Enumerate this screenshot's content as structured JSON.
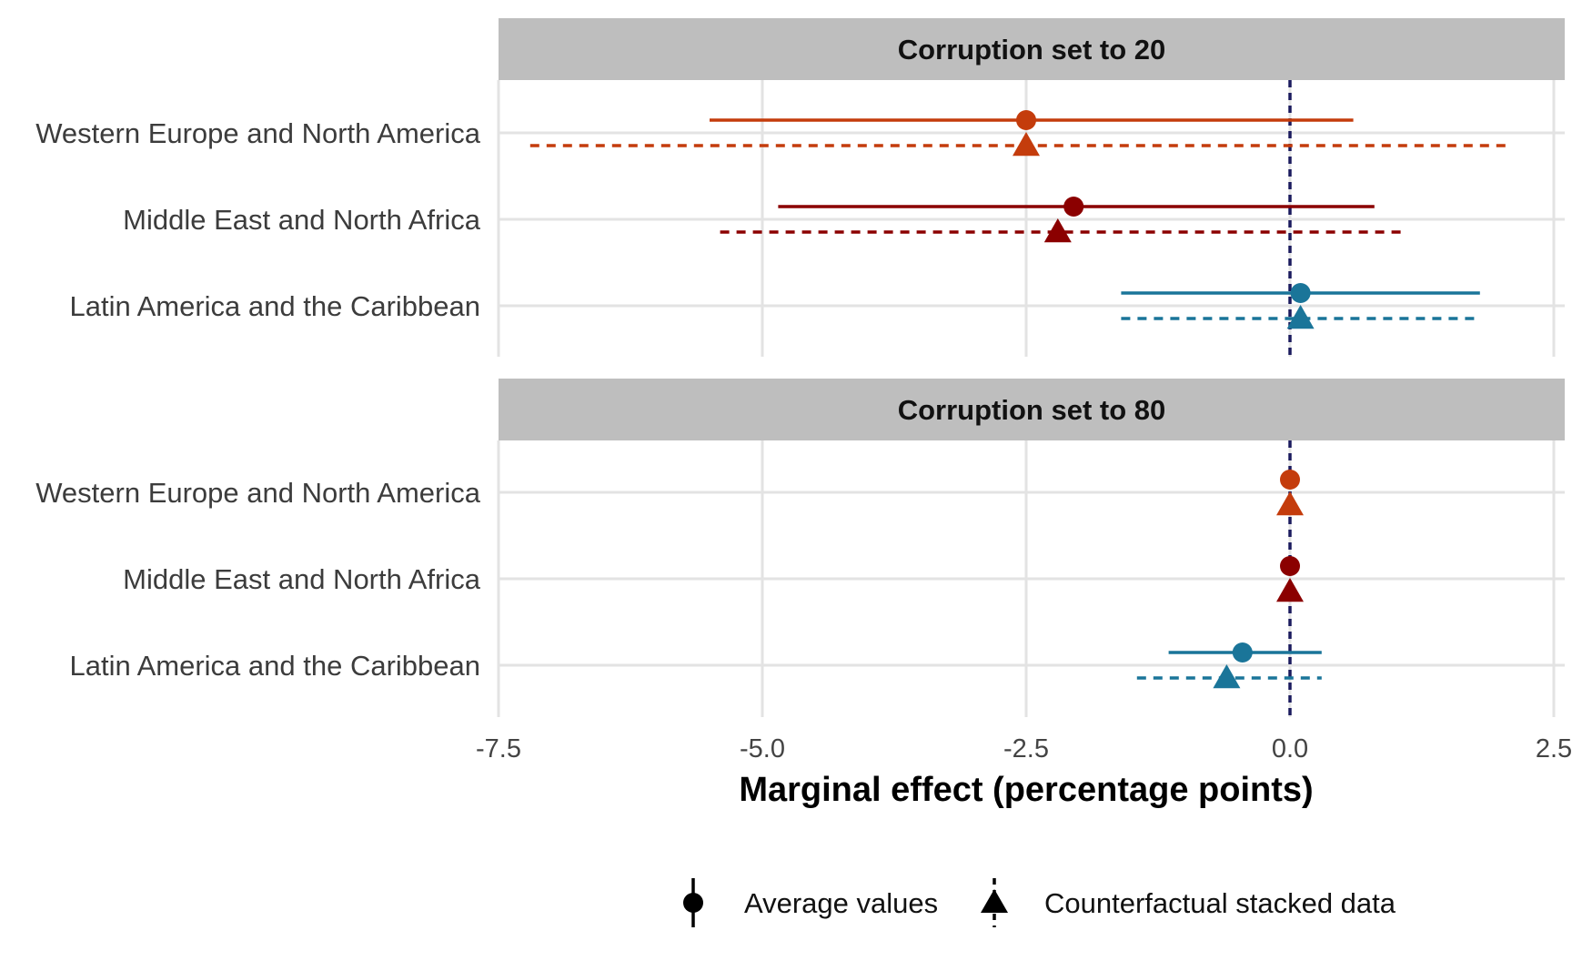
{
  "chart_data": {
    "type": "scatter",
    "subtype": "coefficient-plot-with-intervals",
    "xlabel": "Marginal effect (percentage points)",
    "xlim": [
      -7.5,
      2.5
    ],
    "xticks": [
      "-7.5",
      "-5.0",
      "-2.5",
      "0.0",
      "2.5"
    ],
    "xtick_values": [
      -7.5,
      -5.0,
      -2.5,
      0.0,
      2.5
    ],
    "reference_line": 0,
    "grid": true,
    "legend_position": "bottom",
    "categories": [
      "Western Europe and North America",
      "Middle East and North Africa",
      "Latin America and the Caribbean"
    ],
    "colors": {
      "Western Europe and North America": "#c43c0c",
      "Middle East and North Africa": "#8b0000",
      "Latin America and the Caribbean": "#1a7599",
      "reference": "#1b1b5e"
    },
    "legend": [
      {
        "label": "Average values",
        "shape": "circle",
        "line": "solid"
      },
      {
        "label": "Counterfactual stacked data",
        "shape": "triangle",
        "line": "dashed"
      }
    ],
    "panels": [
      {
        "title": "Corruption set to 20",
        "rows": [
          {
            "category": "Western Europe and North America",
            "average": {
              "estimate": -2.5,
              "low": -5.5,
              "high": 0.6
            },
            "counterfactual": {
              "estimate": -2.5,
              "low": -7.2,
              "high": 2.1
            }
          },
          {
            "category": "Middle East and North Africa",
            "average": {
              "estimate": -2.05,
              "low": -4.85,
              "high": 0.8
            },
            "counterfactual": {
              "estimate": -2.2,
              "low": -5.4,
              "high": 1.05
            }
          },
          {
            "category": "Latin America and the Caribbean",
            "average": {
              "estimate": 0.1,
              "low": -1.6,
              "high": 1.8
            },
            "counterfactual": {
              "estimate": 0.1,
              "low": -1.6,
              "high": 1.75
            }
          }
        ]
      },
      {
        "title": "Corruption set to 80",
        "rows": [
          {
            "category": "Western Europe and North America",
            "average": {
              "estimate": 0.0,
              "low": 0.0,
              "high": 0.0
            },
            "counterfactual": {
              "estimate": 0.0,
              "low": 0.0,
              "high": 0.0
            }
          },
          {
            "category": "Middle East and North Africa",
            "average": {
              "estimate": 0.0,
              "low": 0.0,
              "high": 0.0
            },
            "counterfactual": {
              "estimate": 0.0,
              "low": 0.0,
              "high": 0.0
            }
          },
          {
            "category": "Latin America and the Caribbean",
            "average": {
              "estimate": -0.45,
              "low": -1.15,
              "high": 0.3
            },
            "counterfactual": {
              "estimate": -0.6,
              "low": -1.45,
              "high": 0.3
            }
          }
        ]
      }
    ]
  }
}
